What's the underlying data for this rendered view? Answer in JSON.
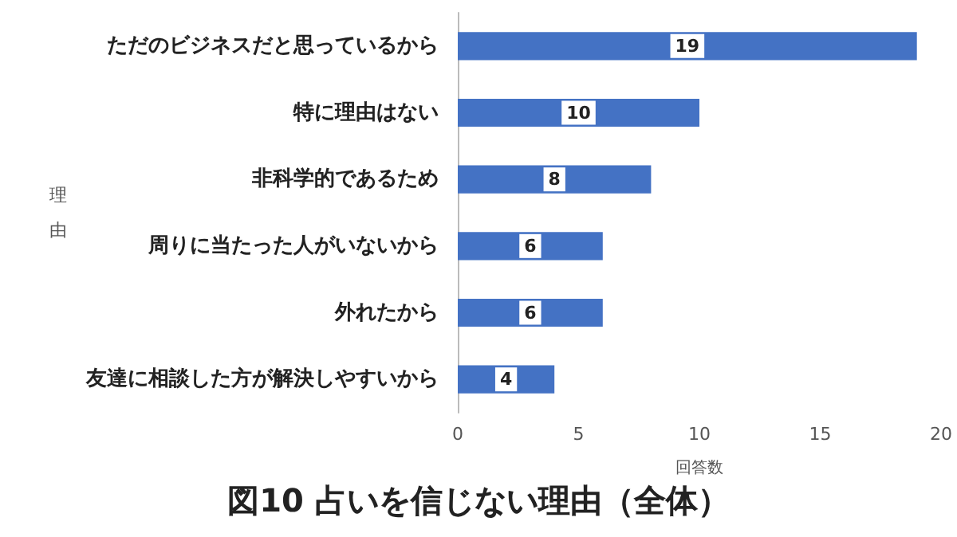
{
  "chart_data": {
    "type": "bar",
    "orientation": "horizontal",
    "title": "図10 占いを信じない理由（全体）",
    "xlabel": "回答数",
    "ylabel": "理由",
    "categories": [
      "ただのビジネスだと思っているから",
      "特に理由はない",
      "非科学的であるため",
      "周りに当たった人がいないから",
      "外れたから",
      "友達に相談した方が解決しやすいから"
    ],
    "values": [
      19,
      10,
      8,
      6,
      6,
      4
    ],
    "color": "#4472c4",
    "xlim": [
      0,
      20
    ],
    "xticks": [
      0,
      5,
      10,
      15,
      20
    ],
    "grid": false,
    "data_labels": true
  }
}
